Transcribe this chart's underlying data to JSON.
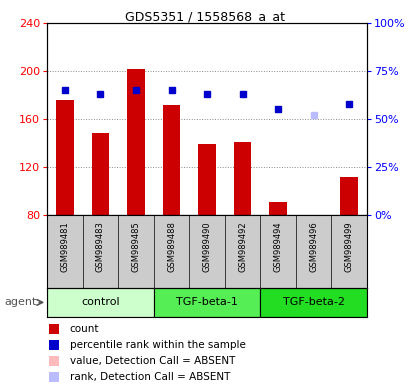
{
  "title": "GDS5351 / 1558568_a_at",
  "samples": [
    "GSM989481",
    "GSM989483",
    "GSM989485",
    "GSM989488",
    "GSM989490",
    "GSM989492",
    "GSM989494",
    "GSM989496",
    "GSM989499"
  ],
  "groups": [
    {
      "name": "control",
      "indices": [
        0,
        1,
        2
      ],
      "color": "#ccffcc"
    },
    {
      "name": "TGF-beta-1",
      "indices": [
        3,
        4,
        5
      ],
      "color": "#55ee55"
    },
    {
      "name": "TGF-beta-2",
      "indices": [
        6,
        7,
        8
      ],
      "color": "#22dd22"
    }
  ],
  "bar_values": [
    176,
    148,
    202,
    172,
    139,
    141,
    91,
    80,
    112
  ],
  "bar_absent": [
    false,
    false,
    false,
    false,
    false,
    false,
    false,
    true,
    false
  ],
  "rank_values": [
    65,
    63,
    65,
    65,
    63,
    63,
    55,
    52,
    58
  ],
  "rank_absent": [
    false,
    false,
    false,
    false,
    false,
    false,
    false,
    true,
    false
  ],
  "ylim_left": [
    80,
    240
  ],
  "ylim_right": [
    0,
    100
  ],
  "yticks_left": [
    80,
    120,
    160,
    200,
    240
  ],
  "yticks_right": [
    0,
    25,
    50,
    75,
    100
  ],
  "yticklabels_right": [
    "0%",
    "25%",
    "50%",
    "75%",
    "100%"
  ],
  "bar_color_present": "#cc0000",
  "bar_color_absent": "#ffbbbb",
  "rank_color_present": "#0000cc",
  "rank_color_absent": "#bbbbff",
  "grid_color": "#888888",
  "background_plot": "#ffffff",
  "background_sample": "#cccccc",
  "legend": [
    {
      "color": "#cc0000",
      "label": "count"
    },
    {
      "color": "#0000cc",
      "label": "percentile rank within the sample"
    },
    {
      "color": "#ffbbbb",
      "label": "value, Detection Call = ABSENT"
    },
    {
      "color": "#bbbbff",
      "label": "rank, Detection Call = ABSENT"
    }
  ]
}
